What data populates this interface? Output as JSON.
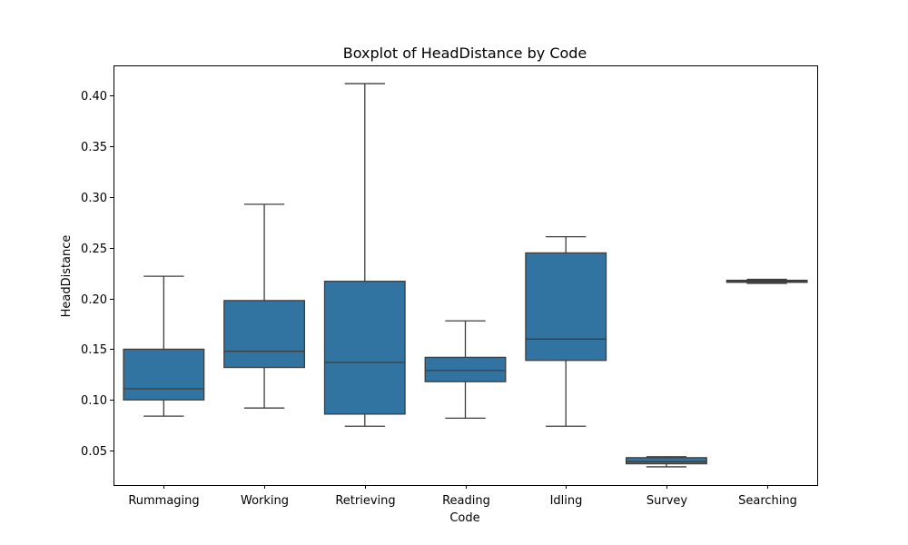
{
  "chart_data": {
    "type": "boxplot",
    "title": "Boxplot of HeadDistance by Code",
    "xlabel": "Code",
    "ylabel": "HeadDistance",
    "ylim": [
      0.016,
      0.43
    ],
    "yticks": [
      0.05,
      0.1,
      0.15,
      0.2,
      0.25,
      0.3,
      0.35,
      0.4
    ],
    "ytick_labels": [
      "0.05",
      "0.10",
      "0.15",
      "0.20",
      "0.25",
      "0.30",
      "0.35",
      "0.40"
    ],
    "box_color": "#3274a1",
    "line_color": "#3d3d3d",
    "grid": false,
    "categories": [
      "Rummaging",
      "Working",
      "Retrieving",
      "Reading",
      "Idling",
      "Survey",
      "Searching"
    ],
    "boxes": [
      {
        "category": "Rummaging",
        "whisker_low": 0.084,
        "q1": 0.1,
        "median": 0.111,
        "q3": 0.15,
        "whisker_high": 0.222
      },
      {
        "category": "Working",
        "whisker_low": 0.092,
        "q1": 0.132,
        "median": 0.148,
        "q3": 0.198,
        "whisker_high": 0.293
      },
      {
        "category": "Retrieving",
        "whisker_low": 0.074,
        "q1": 0.086,
        "median": 0.137,
        "q3": 0.217,
        "whisker_high": 0.412
      },
      {
        "category": "Reading",
        "whisker_low": 0.082,
        "q1": 0.118,
        "median": 0.129,
        "q3": 0.142,
        "whisker_high": 0.178
      },
      {
        "category": "Idling",
        "whisker_low": 0.074,
        "q1": 0.139,
        "median": 0.16,
        "q3": 0.245,
        "whisker_high": 0.261
      },
      {
        "category": "Survey",
        "whisker_low": 0.034,
        "q1": 0.037,
        "median": 0.039,
        "q3": 0.043,
        "whisker_high": 0.044
      },
      {
        "category": "Searching",
        "whisker_low": 0.215,
        "q1": 0.216,
        "median": 0.217,
        "q3": 0.218,
        "whisker_high": 0.219
      }
    ]
  }
}
